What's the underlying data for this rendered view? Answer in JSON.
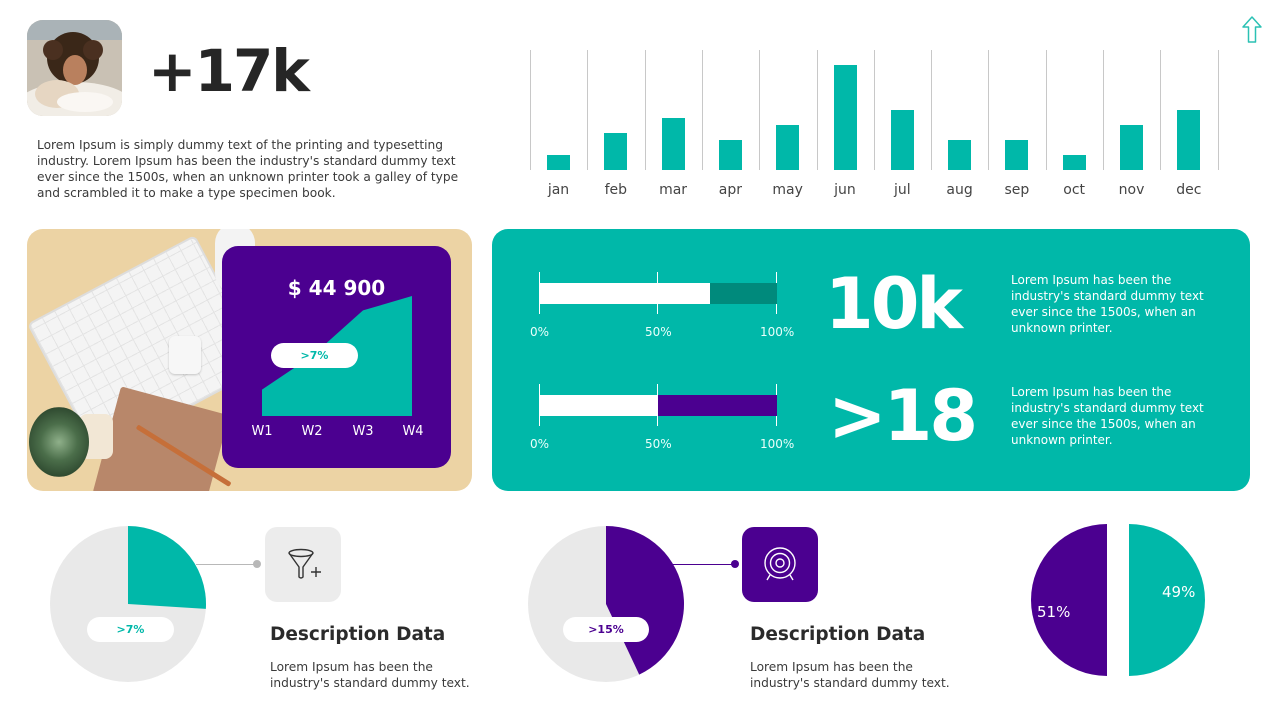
{
  "header": {
    "big_stat": "+17k",
    "intro_text": "Lorem Ipsum is simply dummy text of the printing and typesetting industry. Lorem Ipsum has been the industry's standard dummy text ever since the 1500s, when an unknown printer took a galley of type and scrambled it to make a type specimen book.",
    "nav_icon": "up-arrow-icon"
  },
  "colors": {
    "teal": "#00b8a9",
    "dark_teal": "#008a7c",
    "purple": "#4b0090",
    "light_gray": "#e9e9e9",
    "text_dark": "#262626"
  },
  "revenue_card": {
    "amount": "$ 44 900",
    "badge": ">7%",
    "weeks": [
      "W1",
      "W2",
      "W3",
      "W4"
    ]
  },
  "progress_panel": {
    "rows": [
      {
        "stat": "10k",
        "ticks": [
          "0%",
          "50%",
          "100%"
        ],
        "fill_pct": 72,
        "remainder_color": "#008a7c",
        "description": "Lorem Ipsum has been the industry's standard dummy text ever since the 1500s, when an unknown printer."
      },
      {
        "stat": ">18",
        "ticks": [
          "0%",
          "50%",
          "100%"
        ],
        "fill_pct": 50,
        "remainder_color": "#4b0090",
        "description": "Lorem Ipsum has been the industry's standard dummy text ever since the 1500s, when an unknown printer."
      }
    ]
  },
  "bottom": {
    "items": [
      {
        "badge": ">7%",
        "icon": "funnel-plus-icon",
        "title": "Description Data",
        "body": "Lorem Ipsum has been the industry's standard dummy text."
      },
      {
        "badge": ">15%",
        "icon": "target-icon",
        "title": "Description Data",
        "body": "Lorem Ipsum has been the industry's standard dummy text."
      }
    ],
    "split": {
      "left_label": "51%",
      "right_label": "49%"
    }
  },
  "chart_data": [
    {
      "type": "bar",
      "title": "",
      "categories": [
        "jan",
        "feb",
        "mar",
        "apr",
        "may",
        "jun",
        "jul",
        "aug",
        "sep",
        "oct",
        "nov",
        "dec"
      ],
      "values": [
        1,
        2.5,
        3.5,
        2,
        3,
        7,
        4,
        2,
        2,
        1,
        3,
        4
      ],
      "xlabel": "",
      "ylabel": "",
      "grid": "vertical separators",
      "color": "#00b8a9"
    },
    {
      "type": "area",
      "title": "$ 44 900",
      "categories": [
        "W1",
        "W2",
        "W3",
        "W4"
      ],
      "values": [
        22,
        50,
        88,
        100
      ],
      "annotation": ">7%",
      "color": "#00b8a9"
    },
    {
      "type": "bar",
      "orientation": "horizontal",
      "title": "10k",
      "xticks": [
        "0%",
        "50%",
        "100%"
      ],
      "values": [
        72
      ],
      "xlim": [
        0,
        100
      ]
    },
    {
      "type": "bar",
      "orientation": "horizontal",
      "title": ">18",
      "xticks": [
        "0%",
        "50%",
        "100%"
      ],
      "values": [
        50
      ],
      "xlim": [
        0,
        100
      ]
    },
    {
      "type": "pie",
      "labels": [
        "highlight",
        "rest"
      ],
      "values": [
        26,
        74
      ],
      "annotation": ">7%",
      "colors": [
        "#00b8a9",
        "#e9e9e9"
      ]
    },
    {
      "type": "pie",
      "labels": [
        "highlight",
        "rest"
      ],
      "values": [
        43,
        57
      ],
      "annotation": ">15%",
      "colors": [
        "#4b0090",
        "#e9e9e9"
      ]
    },
    {
      "type": "pie",
      "labels": [
        "51%",
        "49%"
      ],
      "values": [
        51,
        49
      ],
      "colors": [
        "#4b0090",
        "#00b8a9"
      ],
      "exploded": true
    }
  ]
}
